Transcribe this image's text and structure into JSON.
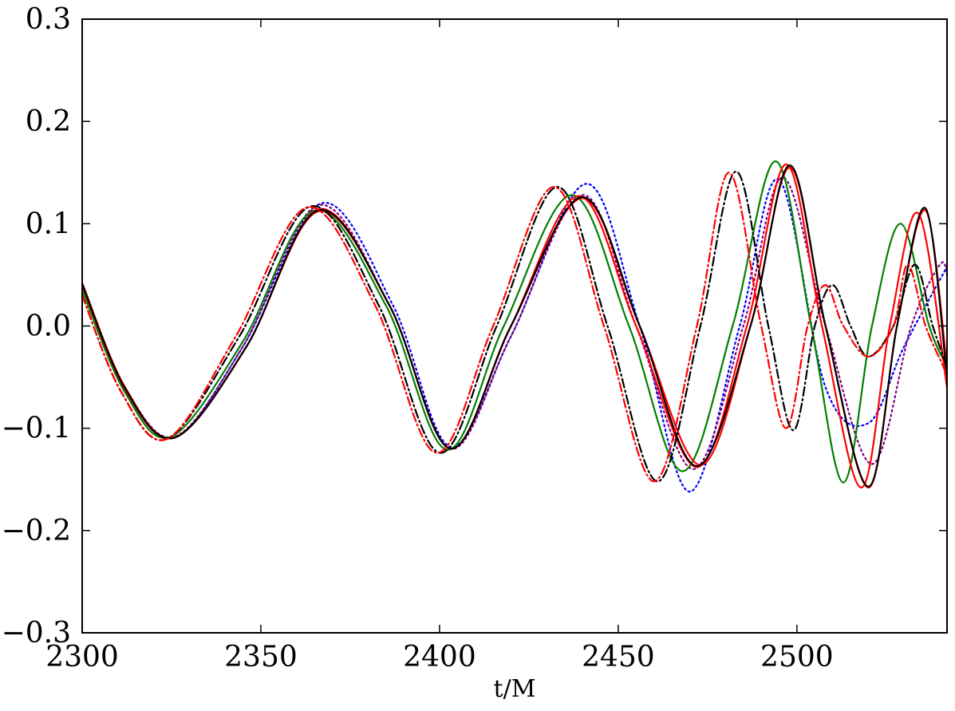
{
  "chart_data": {
    "type": "line",
    "title": "",
    "xlabel": "t/M",
    "ylabel": "",
    "xlim": [
      2300,
      2542
    ],
    "ylim": [
      -0.3,
      0.3
    ],
    "grid": false,
    "legend": "none",
    "x_ticks": [
      2300,
      2350,
      2400,
      2450,
      2500
    ],
    "x_tick_labels": [
      "2300",
      "2350",
      "2400",
      "2450",
      "2500"
    ],
    "y_ticks": [
      -0.3,
      -0.2,
      -0.1,
      0.0,
      0.1,
      0.2,
      0.3
    ],
    "y_tick_labels": [
      "−0.3",
      "−0.2",
      "−0.1",
      "0.0",
      "0.1",
      "0.2",
      "0.3"
    ],
    "series": [
      {
        "color": "#0000ff",
        "dash": "dotted",
        "points": [
          [
            2300,
            0.042
          ],
          [
            2312,
            -0.06
          ],
          [
            2326,
            -0.109
          ],
          [
            2345,
            -0.02
          ],
          [
            2367,
            0.12
          ],
          [
            2387,
            0.02
          ],
          [
            2403,
            -0.118
          ],
          [
            2420,
            -0.01
          ],
          [
            2441,
            0.139
          ],
          [
            2456,
            0.0
          ],
          [
            2470,
            -0.162
          ],
          [
            2484,
            0.0
          ],
          [
            2495,
            0.143
          ],
          [
            2508,
            -0.06
          ],
          [
            2520,
            -0.095
          ],
          [
            2530,
            -0.02
          ],
          [
            2542,
            0.058
          ]
        ]
      },
      {
        "color": "#800080",
        "dash": "dotted",
        "points": [
          [
            2300,
            0.04
          ],
          [
            2312,
            -0.06
          ],
          [
            2326,
            -0.108
          ],
          [
            2345,
            -0.02
          ],
          [
            2366,
            0.118
          ],
          [
            2386,
            0.02
          ],
          [
            2403,
            -0.12
          ],
          [
            2420,
            -0.01
          ],
          [
            2440,
            0.128
          ],
          [
            2455,
            0.0
          ],
          [
            2471,
            -0.14
          ],
          [
            2485,
            0.0
          ],
          [
            2496,
            0.145
          ],
          [
            2508,
            0.0
          ],
          [
            2521,
            -0.135
          ],
          [
            2532,
            0.0
          ],
          [
            2540,
            0.06
          ],
          [
            2542,
            0.05
          ]
        ]
      },
      {
        "color": "#008000",
        "dash": "solid",
        "points": [
          [
            2300,
            0.035
          ],
          [
            2312,
            -0.065
          ],
          [
            2325,
            -0.108
          ],
          [
            2345,
            -0.015
          ],
          [
            2365,
            0.113
          ],
          [
            2385,
            0.02
          ],
          [
            2402,
            -0.121
          ],
          [
            2418,
            0.0
          ],
          [
            2437,
            0.128
          ],
          [
            2453,
            0.0
          ],
          [
            2468,
            -0.142
          ],
          [
            2482,
            0.0
          ],
          [
            2494,
            0.161
          ],
          [
            2504,
            0.0
          ],
          [
            2513,
            -0.153
          ],
          [
            2521,
            0.0
          ],
          [
            2529,
            0.1
          ],
          [
            2537,
            0.0
          ],
          [
            2542,
            -0.04
          ]
        ]
      },
      {
        "color": "#ff0000",
        "dash": "solid",
        "points": [
          [
            2300,
            0.04
          ],
          [
            2312,
            -0.062
          ],
          [
            2326,
            -0.109
          ],
          [
            2346,
            -0.02
          ],
          [
            2366,
            0.114
          ],
          [
            2386,
            0.02
          ],
          [
            2403,
            -0.12
          ],
          [
            2420,
            0.0
          ],
          [
            2439,
            0.127
          ],
          [
            2455,
            0.0
          ],
          [
            2472,
            -0.138
          ],
          [
            2486,
            0.0
          ],
          [
            2497,
            0.158
          ],
          [
            2507,
            0.0
          ],
          [
            2518,
            -0.158
          ],
          [
            2526,
            0.0
          ],
          [
            2534,
            0.11
          ],
          [
            2542,
            -0.06
          ]
        ]
      },
      {
        "color": "#ff0000",
        "dash": "solid",
        "points": [
          [
            2300,
            0.042
          ],
          [
            2312,
            -0.06
          ],
          [
            2326,
            -0.109
          ],
          [
            2346,
            -0.02
          ],
          [
            2366,
            0.112
          ],
          [
            2386,
            0.02
          ],
          [
            2403,
            -0.12
          ],
          [
            2420,
            0.0
          ],
          [
            2440,
            0.125
          ],
          [
            2456,
            0.0
          ],
          [
            2473,
            -0.136
          ],
          [
            2487,
            0.0
          ],
          [
            2498,
            0.155
          ],
          [
            2508,
            0.0
          ],
          [
            2520,
            -0.158
          ],
          [
            2528,
            0.0
          ],
          [
            2536,
            0.113
          ],
          [
            2542,
            -0.04
          ]
        ]
      },
      {
        "color": "#000000",
        "dash": "solid",
        "points": [
          [
            2300,
            0.041
          ],
          [
            2312,
            -0.061
          ],
          [
            2326,
            -0.109
          ],
          [
            2346,
            -0.02
          ],
          [
            2366,
            0.113
          ],
          [
            2386,
            0.02
          ],
          [
            2403,
            -0.12
          ],
          [
            2420,
            0.0
          ],
          [
            2440,
            0.126
          ],
          [
            2456,
            0.0
          ],
          [
            2472,
            -0.137
          ],
          [
            2487,
            0.0
          ],
          [
            2498,
            0.157
          ],
          [
            2508,
            0.0
          ],
          [
            2520,
            -0.157
          ],
          [
            2528,
            0.0
          ],
          [
            2536,
            0.115
          ],
          [
            2542,
            -0.05
          ]
        ]
      },
      {
        "color": "#000000",
        "dash": "dashdot",
        "points": [
          [
            2300,
            0.03
          ],
          [
            2311,
            -0.065
          ],
          [
            2324,
            -0.11
          ],
          [
            2344,
            -0.01
          ],
          [
            2364,
            0.117
          ],
          [
            2383,
            0.02
          ],
          [
            2400,
            -0.124
          ],
          [
            2416,
            0.0
          ],
          [
            2433,
            0.136
          ],
          [
            2447,
            0.0
          ],
          [
            2461,
            -0.152
          ],
          [
            2473,
            0.0
          ],
          [
            2483,
            0.151
          ],
          [
            2492,
            0.0
          ],
          [
            2499,
            -0.102
          ],
          [
            2505,
            0.0
          ],
          [
            2510,
            0.04
          ],
          [
            2515,
            0.0
          ],
          [
            2520,
            -0.03
          ],
          [
            2527,
            0.0
          ],
          [
            2533,
            0.06
          ],
          [
            2538,
            0.0
          ],
          [
            2542,
            -0.04
          ]
        ]
      },
      {
        "color": "#ff0000",
        "dash": "dashdot",
        "points": [
          [
            2300,
            0.03
          ],
          [
            2311,
            -0.065
          ],
          [
            2324,
            -0.11
          ],
          [
            2343,
            -0.01
          ],
          [
            2363,
            0.116
          ],
          [
            2382,
            0.02
          ],
          [
            2399,
            -0.124
          ],
          [
            2415,
            0.0
          ],
          [
            2432,
            0.136
          ],
          [
            2446,
            0.0
          ],
          [
            2460,
            -0.152
          ],
          [
            2472,
            0.0
          ],
          [
            2481,
            0.15
          ],
          [
            2490,
            0.0
          ],
          [
            2497,
            -0.1
          ],
          [
            2503,
            0.0
          ],
          [
            2508,
            0.04
          ],
          [
            2513,
            0.0
          ],
          [
            2520,
            -0.03
          ],
          [
            2527,
            0.0
          ],
          [
            2531,
            0.06
          ],
          [
            2536,
            0.0
          ],
          [
            2541,
            -0.04
          ],
          [
            2542,
            -0.05
          ]
        ]
      }
    ]
  }
}
